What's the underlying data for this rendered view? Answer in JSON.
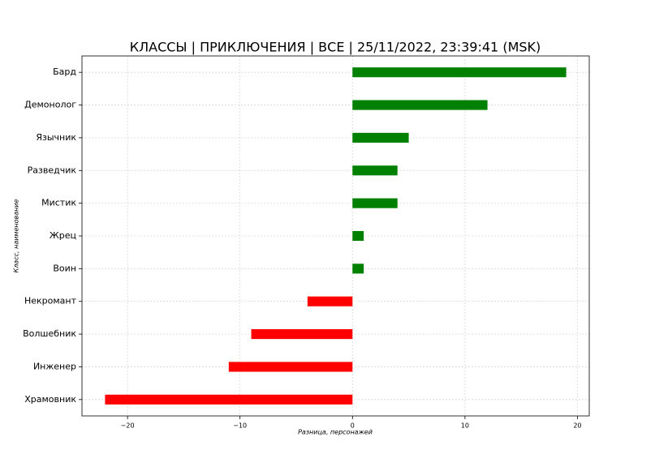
{
  "chart_data": {
    "type": "barh",
    "title": "КЛАССЫ | ПРИКЛЮЧЕНИЯ | ВСЕ | 25/11/2022, 23:39:41 (MSK)",
    "xlabel": "Разница, персонажей",
    "ylabel": "Класс, наименование",
    "categories": [
      "Бард",
      "Демонолог",
      "Язычник",
      "Разведчик",
      "Мистик",
      "Жрец",
      "Воин",
      "Некромант",
      "Волшебник",
      "Инженер",
      "Храмовник"
    ],
    "values": [
      19,
      12,
      5,
      4,
      4,
      1,
      1,
      -4,
      -9,
      -11,
      -22
    ],
    "colors": [
      "#008000",
      "#008000",
      "#008000",
      "#008000",
      "#008000",
      "#008000",
      "#008000",
      "#ff0000",
      "#ff0000",
      "#ff0000",
      "#ff0000"
    ],
    "xlim": [
      -24.05,
      21.05
    ],
    "xticks": [
      {
        "value": -20,
        "label": "−20"
      },
      {
        "value": -10,
        "label": "−10"
      },
      0,
      10,
      20
    ],
    "grid": true
  }
}
